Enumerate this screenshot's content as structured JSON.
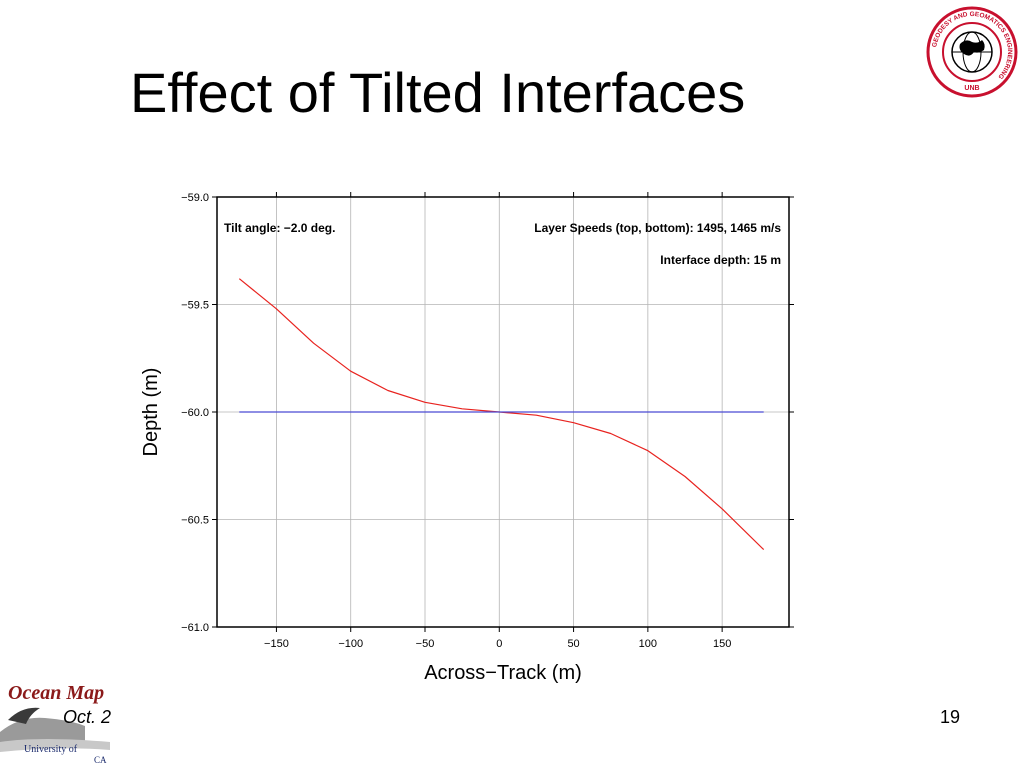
{
  "slide": {
    "title": "Effect of Tilted Interfaces",
    "page_number": "19",
    "footer_date": "Oct. 2",
    "footer_logo_text": "Ocean Map",
    "footer_logo_sub1": "University of",
    "footer_logo_sub2": "CA",
    "logo_ring_text": "GEODESY AND GEOMATICS ENGINEERING",
    "logo_bottom_text": "UNB"
  },
  "chart_data": {
    "type": "line",
    "title": "",
    "xlabel": "Across−Track (m)",
    "ylabel": "Depth (m)",
    "xlim": [
      -190,
      195
    ],
    "ylim": [
      -61.0,
      -59.0
    ],
    "xticks": [
      -150,
      -100,
      -50,
      0,
      50,
      100,
      150
    ],
    "xtick_labels": [
      "−150",
      "−100",
      "−50",
      "0",
      "50",
      "100",
      "150"
    ],
    "yticks": [
      -59.0,
      -59.5,
      -60.0,
      -60.5,
      -61.0
    ],
    "ytick_labels": [
      "−59.0",
      "−59.5",
      "−60.0",
      "−60.5",
      "−61.0"
    ],
    "grid": true,
    "annotations": {
      "tilt": "Tilt angle: −2.0 deg.",
      "speeds": "Layer Speeds (top, bottom): 1495, 1465 m/s",
      "interface": "Interface depth: 15 m"
    },
    "series": [
      {
        "color": "#e8231f",
        "x": [
          -175,
          -150,
          -125,
          -100,
          -75,
          -50,
          -25,
          0,
          25,
          50,
          75,
          100,
          125,
          150,
          178
        ],
        "y": [
          -59.38,
          -59.52,
          -59.68,
          -59.81,
          -59.9,
          -59.955,
          -59.985,
          -60.0,
          -60.015,
          -60.05,
          -60.1,
          -60.18,
          -60.3,
          -60.45,
          -60.64
        ]
      },
      {
        "color": "#4b4bd4",
        "x": [
          -175,
          178
        ],
        "y": [
          -60.0,
          -60.0
        ]
      }
    ]
  }
}
